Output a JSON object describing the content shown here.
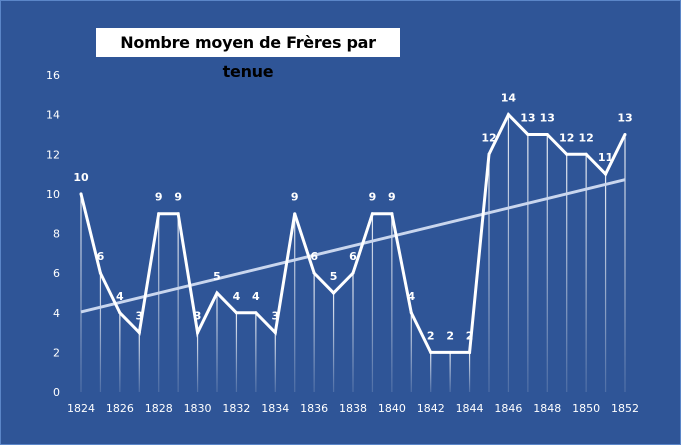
{
  "chart_data": {
    "type": "line",
    "title": "Nombre moyen de Frères par tenue",
    "xlabel": "",
    "ylabel": "",
    "x": [
      1824,
      1825,
      1826,
      1827,
      1828,
      1829,
      1830,
      1831,
      1832,
      1833,
      1834,
      1835,
      1836,
      1837,
      1838,
      1839,
      1840,
      1841,
      1842,
      1843,
      1844,
      1845,
      1846,
      1847,
      1848,
      1849,
      1850,
      1851,
      1852
    ],
    "series": [
      {
        "name": "Nombre moyen de Frères par tenue",
        "values": [
          10,
          6,
          4,
          3,
          9,
          9,
          3,
          5,
          4,
          4,
          3,
          9,
          6,
          5,
          6,
          9,
          9,
          4,
          2,
          2,
          2,
          12,
          14,
          13,
          13,
          12,
          12,
          11,
          13
        ]
      },
      {
        "name": "Tendance linéaire",
        "type": "trendline"
      }
    ],
    "x_tick_labels": [
      "1824",
      "1826",
      "1828",
      "1830",
      "1832",
      "1834",
      "1836",
      "1838",
      "1840",
      "1842",
      "1844",
      "1846",
      "1848",
      "1850",
      "1852"
    ],
    "y_tick_labels": [
      "0",
      "2",
      "4",
      "6",
      "8",
      "10",
      "12",
      "14",
      "16"
    ],
    "ylim": [
      0,
      16
    ],
    "grid": false,
    "data_labels": true,
    "colors": {
      "background": "#2F5597",
      "line": "#FFFFFF",
      "trend": "#C9D6EE"
    }
  }
}
